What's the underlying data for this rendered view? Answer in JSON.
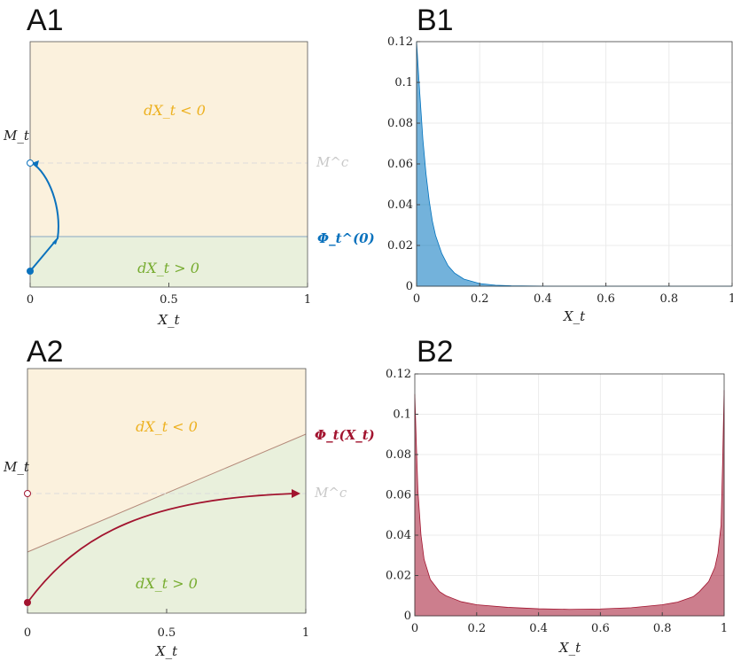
{
  "panels": {
    "a1": {
      "label": "A1",
      "xlabel": "X_t",
      "ylabel": "M_t",
      "xticks": [
        "0",
        "0.5",
        "1"
      ],
      "upper_region": "dX_t < 0",
      "lower_region": "dX_t > 0",
      "mc_label": "M^c",
      "boundary_label": "Φ_t^(0)",
      "colors": {
        "upper": "#fbf1dd",
        "lower": "#e9f0dc",
        "upper_text": "#edb120",
        "lower_text": "#77ac30",
        "trajectory": "#0b72bd"
      }
    },
    "a2": {
      "label": "A2",
      "xlabel": "X_t",
      "ylabel": "M_t",
      "xticks": [
        "0",
        "0.5",
        "1"
      ],
      "upper_region": "dX_t < 0",
      "lower_region": "dX_t > 0",
      "mc_label": "M^c",
      "boundary_label": "Φ_t(X_t)",
      "colors": {
        "upper": "#fbf1dd",
        "lower": "#e9f0dc",
        "upper_text": "#edb120",
        "lower_text": "#77ac30",
        "trajectory": "#a2142f"
      }
    }
  },
  "chart_data": [
    {
      "id": "b1",
      "label": "B1",
      "type": "area",
      "xlabel": "X_t",
      "xlim": [
        0,
        1
      ],
      "ylim": [
        0,
        0.12
      ],
      "xticks": [
        "0",
        "0.2",
        "0.4",
        "0.6",
        "0.8",
        "1"
      ],
      "yticks": [
        "0",
        "0.02",
        "0.04",
        "0.06",
        "0.08",
        "0.1",
        "0.12"
      ],
      "grid": true,
      "color": "#0072bd",
      "x": [
        0,
        0.01,
        0.02,
        0.03,
        0.04,
        0.05,
        0.06,
        0.08,
        0.1,
        0.12,
        0.15,
        0.2,
        0.25,
        0.3,
        0.4,
        0.5,
        0.6,
        0.8,
        1.0
      ],
      "y": [
        0.12,
        0.095,
        0.072,
        0.055,
        0.042,
        0.032,
        0.025,
        0.016,
        0.01,
        0.0065,
        0.0035,
        0.0013,
        0.0005,
        0.0002,
        3e-05,
        0,
        0,
        0,
        0
      ]
    },
    {
      "id": "b2",
      "label": "B2",
      "type": "area",
      "xlabel": "X_t",
      "xlim": [
        0,
        1
      ],
      "ylim": [
        0,
        0.12
      ],
      "xticks": [
        "0",
        "0.2",
        "0.4",
        "0.6",
        "0.8",
        "1"
      ],
      "yticks": [
        "0",
        "0.02",
        "0.04",
        "0.06",
        "0.08",
        "0.1",
        "0.12"
      ],
      "grid": true,
      "color": "#a2142f",
      "x": [
        0,
        0.005,
        0.01,
        0.02,
        0.03,
        0.05,
        0.08,
        0.1,
        0.15,
        0.2,
        0.3,
        0.4,
        0.5,
        0.6,
        0.7,
        0.8,
        0.85,
        0.9,
        0.92,
        0.95,
        0.97,
        0.98,
        0.99,
        0.995,
        1.0
      ],
      "y": [
        0.11,
        0.085,
        0.062,
        0.04,
        0.028,
        0.018,
        0.012,
        0.01,
        0.007,
        0.0055,
        0.0042,
        0.0035,
        0.0032,
        0.0034,
        0.004,
        0.0055,
        0.0068,
        0.0095,
        0.012,
        0.017,
        0.024,
        0.031,
        0.045,
        0.075,
        0.112
      ]
    }
  ]
}
